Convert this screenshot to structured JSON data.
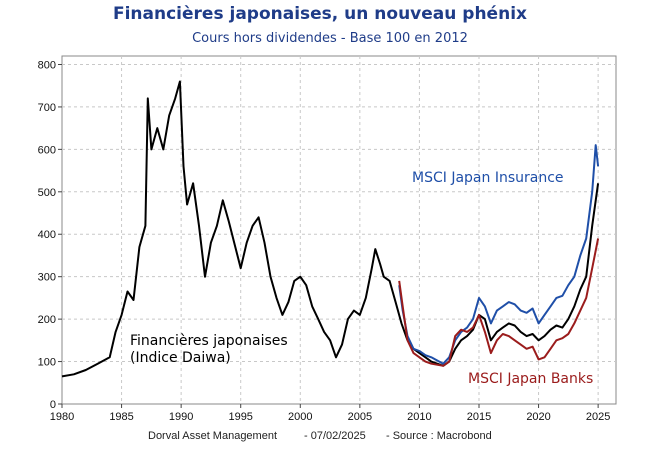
{
  "chart_data": {
    "type": "line",
    "title": "Financières japonaises, un nouveau phénix",
    "subtitle": "Cours hors dividendes - Base 100 en 2012",
    "xlim": [
      1980,
      2026.5
    ],
    "ylim": [
      0,
      820
    ],
    "x_ticks": [
      1980,
      1985,
      1990,
      1995,
      2000,
      2005,
      2010,
      2015,
      2020,
      2025
    ],
    "y_ticks": [
      0,
      100,
      200,
      300,
      400,
      500,
      600,
      700,
      800
    ],
    "grid": true,
    "series": [
      {
        "name": "Financières japonaises (Indice Daiwa)",
        "color": "#000000",
        "points": [
          [
            1980,
            65
          ],
          [
            1981,
            70
          ],
          [
            1982,
            80
          ],
          [
            1983,
            95
          ],
          [
            1984,
            110
          ],
          [
            1984.5,
            170
          ],
          [
            1985,
            210
          ],
          [
            1985.5,
            265
          ],
          [
            1986,
            245
          ],
          [
            1986.5,
            370
          ],
          [
            1987,
            420
          ],
          [
            1987.2,
            720
          ],
          [
            1987.5,
            600
          ],
          [
            1988,
            650
          ],
          [
            1988.5,
            600
          ],
          [
            1989,
            680
          ],
          [
            1989.5,
            720
          ],
          [
            1989.9,
            760
          ],
          [
            1990.2,
            560
          ],
          [
            1990.5,
            470
          ],
          [
            1991,
            520
          ],
          [
            1991.5,
            420
          ],
          [
            1992,
            300
          ],
          [
            1992.5,
            380
          ],
          [
            1993,
            420
          ],
          [
            1993.5,
            480
          ],
          [
            1994,
            430
          ],
          [
            1995,
            320
          ],
          [
            1995.5,
            380
          ],
          [
            1996,
            420
          ],
          [
            1996.5,
            440
          ],
          [
            1997,
            380
          ],
          [
            1997.5,
            300
          ],
          [
            1998,
            250
          ],
          [
            1998.5,
            210
          ],
          [
            1999,
            240
          ],
          [
            1999.5,
            290
          ],
          [
            2000,
            300
          ],
          [
            2000.5,
            280
          ],
          [
            2001,
            230
          ],
          [
            2001.5,
            200
          ],
          [
            2002,
            170
          ],
          [
            2002.5,
            150
          ],
          [
            2003,
            110
          ],
          [
            2003.5,
            140
          ],
          [
            2004,
            200
          ],
          [
            2004.5,
            220
          ],
          [
            2005,
            210
          ],
          [
            2005.5,
            250
          ],
          [
            2006,
            320
          ],
          [
            2006.3,
            365
          ],
          [
            2006.7,
            330
          ],
          [
            2007,
            300
          ],
          [
            2007.5,
            290
          ],
          [
            2008,
            240
          ],
          [
            2008.5,
            190
          ],
          [
            2009,
            150
          ],
          [
            2009.5,
            130
          ],
          [
            2010,
            120
          ],
          [
            2010.5,
            110
          ],
          [
            2011,
            100
          ],
          [
            2012,
            90
          ],
          [
            2012.5,
            100
          ],
          [
            2013,
            130
          ],
          [
            2013.5,
            150
          ],
          [
            2014,
            160
          ],
          [
            2014.5,
            175
          ],
          [
            2015,
            210
          ],
          [
            2015.5,
            200
          ],
          [
            2016,
            150
          ],
          [
            2016.5,
            170
          ],
          [
            2017,
            180
          ],
          [
            2017.5,
            190
          ],
          [
            2018,
            185
          ],
          [
            2018.5,
            170
          ],
          [
            2019,
            160
          ],
          [
            2019.5,
            165
          ],
          [
            2020,
            150
          ],
          [
            2020.5,
            160
          ],
          [
            2021,
            175
          ],
          [
            2021.5,
            185
          ],
          [
            2022,
            180
          ],
          [
            2022.5,
            200
          ],
          [
            2023,
            230
          ],
          [
            2023.5,
            270
          ],
          [
            2024,
            300
          ],
          [
            2024.5,
            420
          ],
          [
            2025,
            520
          ]
        ]
      },
      {
        "name": "MSCI Japan Insurance",
        "color": "#1f4fa8",
        "points": [
          [
            2008.3,
            280
          ],
          [
            2008.6,
            220
          ],
          [
            2009,
            160
          ],
          [
            2009.5,
            130
          ],
          [
            2010,
            125
          ],
          [
            2010.5,
            115
          ],
          [
            2011,
            110
          ],
          [
            2012,
            95
          ],
          [
            2012.5,
            110
          ],
          [
            2013,
            150
          ],
          [
            2013.5,
            170
          ],
          [
            2014,
            180
          ],
          [
            2014.5,
            200
          ],
          [
            2015,
            250
          ],
          [
            2015.5,
            230
          ],
          [
            2016,
            190
          ],
          [
            2016.5,
            220
          ],
          [
            2017,
            230
          ],
          [
            2017.5,
            240
          ],
          [
            2018,
            235
          ],
          [
            2018.5,
            220
          ],
          [
            2019,
            215
          ],
          [
            2019.5,
            225
          ],
          [
            2020,
            190
          ],
          [
            2020.5,
            210
          ],
          [
            2021,
            230
          ],
          [
            2021.5,
            250
          ],
          [
            2022,
            255
          ],
          [
            2022.5,
            280
          ],
          [
            2023,
            300
          ],
          [
            2023.5,
            350
          ],
          [
            2024,
            390
          ],
          [
            2024.5,
            500
          ],
          [
            2024.8,
            610
          ],
          [
            2025,
            560
          ]
        ]
      },
      {
        "name": "MSCI Japan Banks",
        "color": "#9b1c1c",
        "points": [
          [
            2008.3,
            290
          ],
          [
            2008.6,
            230
          ],
          [
            2009,
            150
          ],
          [
            2009.5,
            120
          ],
          [
            2010,
            110
          ],
          [
            2010.5,
            100
          ],
          [
            2011,
            95
          ],
          [
            2012,
            90
          ],
          [
            2012.5,
            100
          ],
          [
            2013,
            160
          ],
          [
            2013.5,
            175
          ],
          [
            2014,
            170
          ],
          [
            2014.5,
            180
          ],
          [
            2015,
            210
          ],
          [
            2015.5,
            170
          ],
          [
            2016,
            120
          ],
          [
            2016.5,
            150
          ],
          [
            2017,
            165
          ],
          [
            2017.5,
            160
          ],
          [
            2018,
            150
          ],
          [
            2018.5,
            140
          ],
          [
            2019,
            130
          ],
          [
            2019.5,
            135
          ],
          [
            2020,
            105
          ],
          [
            2020.5,
            110
          ],
          [
            2021,
            130
          ],
          [
            2021.5,
            150
          ],
          [
            2022,
            155
          ],
          [
            2022.5,
            165
          ],
          [
            2023,
            190
          ],
          [
            2023.5,
            220
          ],
          [
            2024,
            250
          ],
          [
            2024.5,
            320
          ],
          [
            2025,
            390
          ]
        ]
      }
    ]
  },
  "labels": {
    "daiwa_line1": "Financières japonaises",
    "daiwa_line2": "(Indice Daiwa)",
    "insurance": "MSCI Japan Insurance",
    "banks": "MSCI Japan Banks"
  },
  "footer": {
    "author": "Dorval Asset Management",
    "date": "- 07/02/2025",
    "source": "- Source : Macrobond"
  }
}
